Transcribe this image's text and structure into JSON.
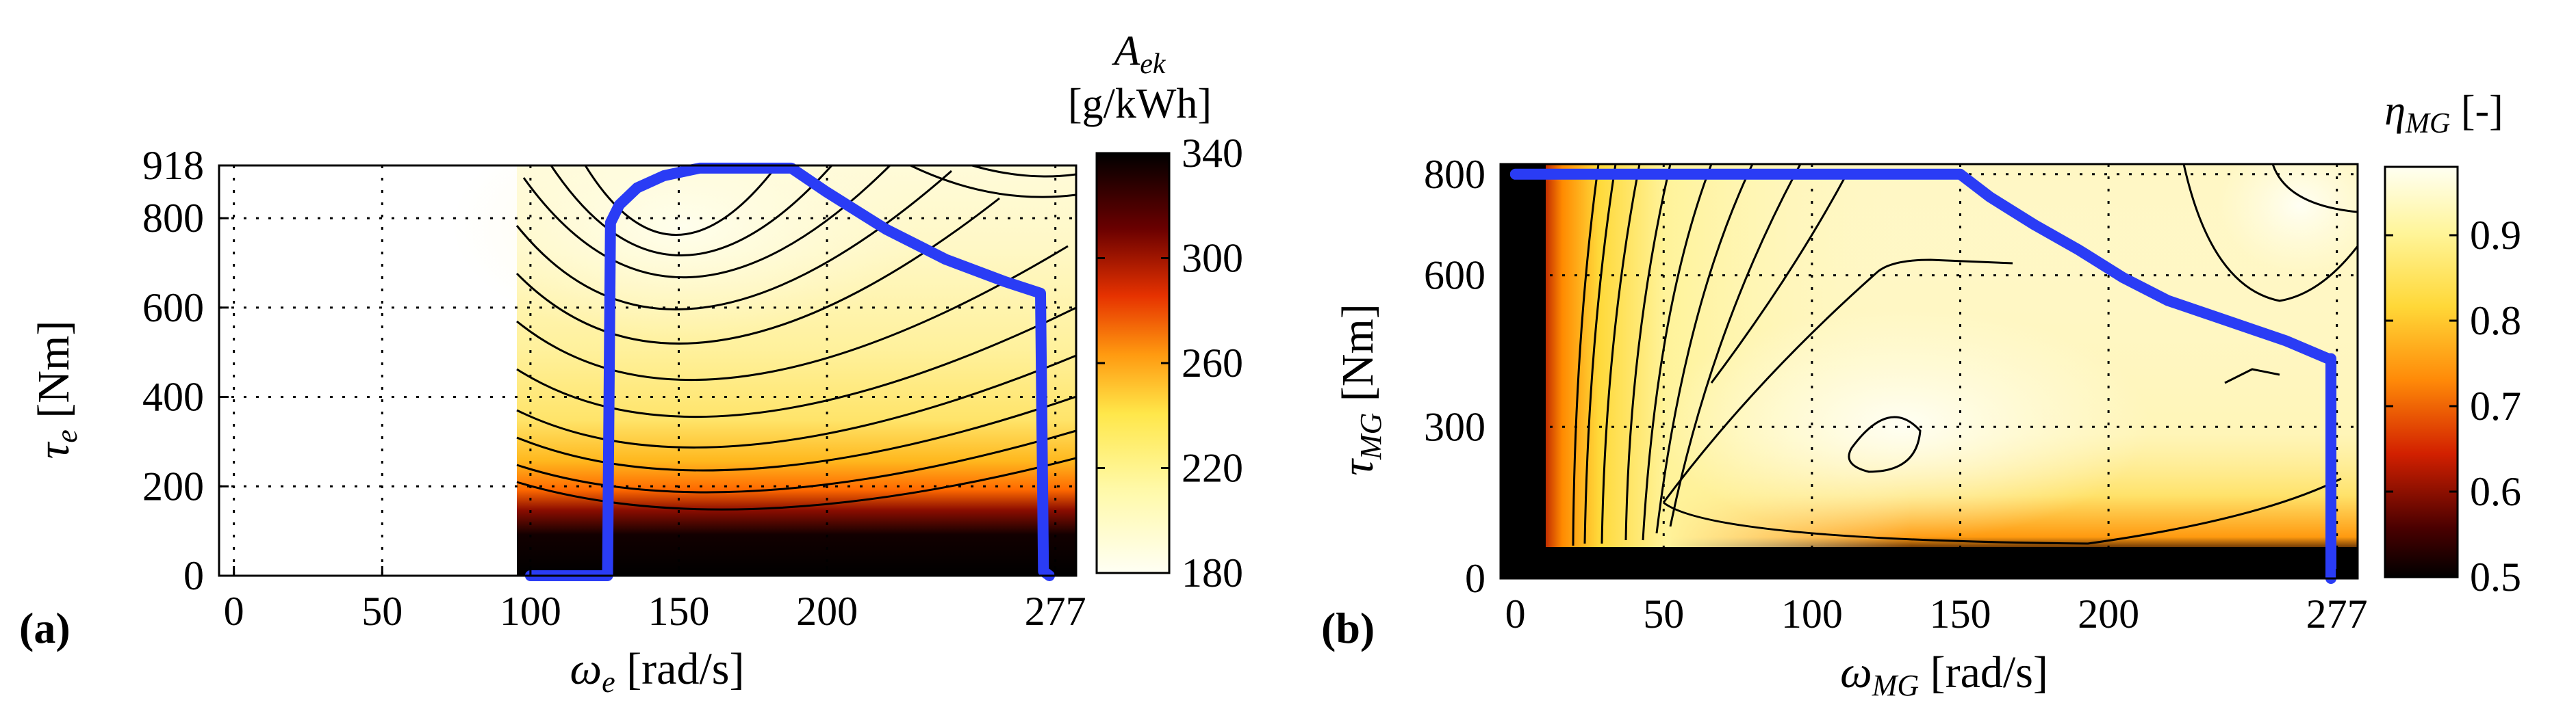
{
  "chart_data": [
    {
      "type": "heatmap",
      "panel_label": "(a)",
      "xlabel_sym": "ω",
      "xlabel_sub": "e",
      "xlabel_unit": " [rad/s]",
      "ylabel_sym": "τ",
      "ylabel_sub": "e",
      "ylabel_unit": " [Nm]",
      "xlim": [
        -5,
        284
      ],
      "ylim": [
        0,
        918
      ],
      "xticks": [
        0,
        50,
        100,
        150,
        200,
        277
      ],
      "yticks": [
        0,
        200,
        400,
        600,
        800,
        918
      ],
      "grid": true,
      "colorbar": {
        "title_sym": "A",
        "title_sub": "ek",
        "title_unit": "[g/kWh]",
        "range": [
          180,
          340
        ],
        "ticks": [
          180,
          220,
          260,
          300,
          340
        ],
        "colormap": "hot (reversed)"
      },
      "map_region_x": [
        100,
        277
      ],
      "optimum_center": [
        150,
        800
      ],
      "max_torque_curve": {
        "x": [
          100,
          126,
          127,
          130,
          136,
          145,
          157,
          165,
          175,
          188,
          200,
          220,
          240,
          260,
          272,
          273,
          275
        ],
        "y": [
          0,
          0,
          790,
          830,
          868,
          895,
          912,
          912,
          912,
          912,
          858,
          775,
          708,
          658,
          632,
          10,
          0
        ]
      },
      "curve_color": "#2a3cf5"
    },
    {
      "type": "heatmap",
      "panel_label": "(b)",
      "xlabel_sym": "ω",
      "xlabel_sub": "MG",
      "xlabel_unit": " [rad/s]",
      "ylabel_sym": "τ",
      "ylabel_sub": "MG",
      "ylabel_unit": " [Nm]",
      "xlim": [
        -5,
        284
      ],
      "ylim": [
        0,
        820
      ],
      "xticks": [
        0,
        50,
        100,
        150,
        200,
        277
      ],
      "yticks": [
        0,
        300,
        600,
        800
      ],
      "grid": true,
      "colorbar": {
        "title_sym": "η",
        "title_sub": "MG",
        "title_unit": " [-]",
        "range": [
          0.5,
          0.98
        ],
        "ticks": [
          0.5,
          0.6,
          0.7,
          0.8,
          0.9
        ],
        "colormap": "hot"
      },
      "peak_efficiency_center": [
        130,
        285
      ],
      "max_torque_curve": {
        "x": [
          0,
          150,
          160,
          175,
          190,
          205,
          220,
          240,
          260,
          274,
          275,
          275
        ],
        "y": [
          800,
          800,
          755,
          700,
          650,
          595,
          550,
          510,
          470,
          435,
          435,
          0
        ]
      },
      "curve_color": "#2a3cf5"
    }
  ]
}
